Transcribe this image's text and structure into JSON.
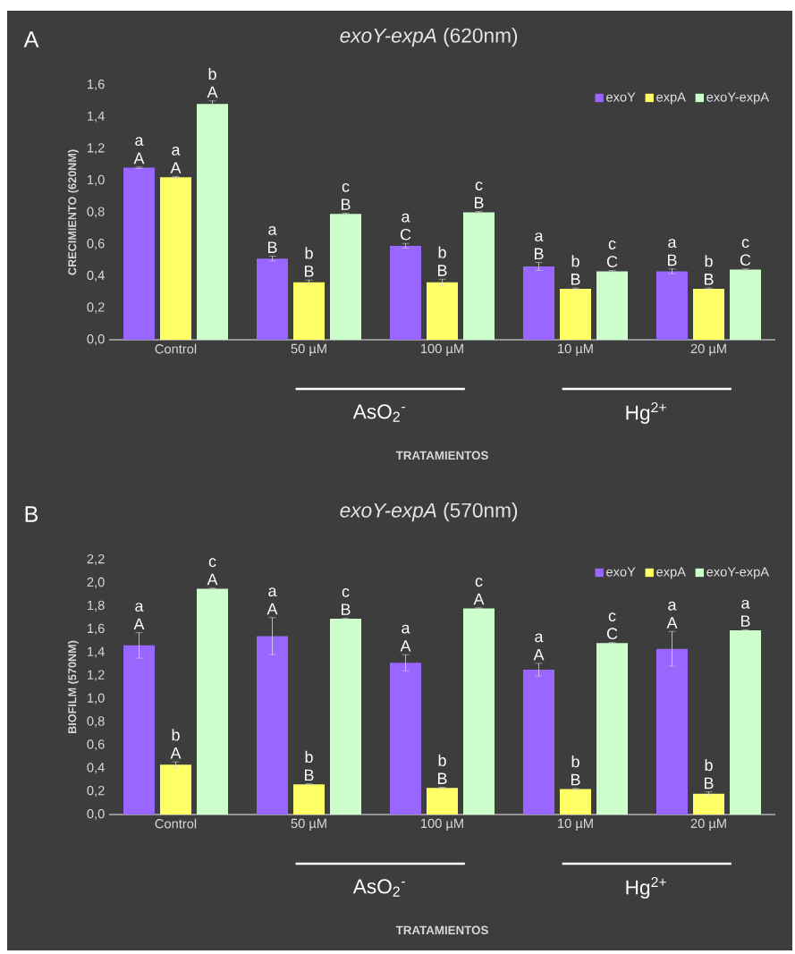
{
  "chart_data": [
    {
      "type": "bar",
      "title": "*exoY-expA* (620nm)",
      "xlabel": "TRATAMIENTOS",
      "ylabel": "CRECIMIENTO (620NM)",
      "categories": [
        "Control",
        "50 µM",
        "100 µM",
        "10 µM",
        "20 µM"
      ],
      "series": [
        {
          "name": "exoY",
          "color": "#9966ff",
          "values": [
            1.08,
            0.51,
            0.59,
            0.46,
            0.43
          ],
          "errors": [
            0.005,
            0.015,
            0.015,
            0.025,
            0.015
          ]
        },
        {
          "name": "expA",
          "color": "#ffff66",
          "values": [
            1.02,
            0.36,
            0.36,
            0.32,
            0.32
          ],
          "errors": [
            0.005,
            0.015,
            0.02,
            0.005,
            0.005
          ]
        },
        {
          "name": "exoY-expA",
          "color": "#ccffcc",
          "values": [
            1.48,
            0.79,
            0.8,
            0.43,
            0.44
          ],
          "errors": [
            0.02,
            0.005,
            0.005,
            0.005,
            0.005
          ]
        }
      ],
      "ylim": [
        0,
        1.6
      ],
      "yticks": [
        {
          "value": 0,
          "label": "0,0"
        },
        {
          "value": 0.2,
          "label": "0,2"
        },
        {
          "value": 0.4,
          "label": "0,4"
        },
        {
          "value": 0.6,
          "label": "0,6"
        },
        {
          "value": 0.8,
          "label": "0,8"
        },
        {
          "value": 1.0,
          "label": "1,0"
        },
        {
          "value": 1.2,
          "label": "1,2"
        },
        {
          "value": 1.4,
          "label": "1,4"
        },
        {
          "value": 1.6,
          "label": "1,6"
        }
      ],
      "legend": "top right",
      "annotations": [
        "A",
        "AsO$_{2}$$^{-}$",
        "Hg$^{2+}$",
        "a",
        "A",
        "a",
        "A",
        "b",
        "A",
        "a",
        "B",
        "b",
        "B",
        "c",
        "B",
        "a",
        "C",
        "b",
        "B",
        "c",
        "B",
        "a",
        "B",
        "b",
        "B",
        "c",
        "C",
        "a",
        "B",
        "b",
        "B",
        "c",
        "C"
      ]
    },
    {
      "type": "bar",
      "title": "*exoY-expA* (570nm)",
      "xlabel": "TRATAMIENTOS",
      "ylabel": "BIOFILM (570NM)",
      "categories": [
        "Control",
        "50 µM",
        "100 µM",
        "10 µM",
        "20 µM"
      ],
      "series": [
        {
          "name": "exoY",
          "color": "#9966ff",
          "values": [
            1.46,
            1.54,
            1.31,
            1.25,
            1.43
          ],
          "errors": [
            0.11,
            0.16,
            0.07,
            0.055,
            0.15
          ]
        },
        {
          "name": "expA",
          "color": "#ffff66",
          "values": [
            0.43,
            0.26,
            0.23,
            0.22,
            0.18
          ],
          "errors": [
            0.025,
            0.005,
            0.005,
            0.005,
            0.015
          ]
        },
        {
          "name": "exoY-expA",
          "color": "#ccffcc",
          "values": [
            1.95,
            1.69,
            1.78,
            1.48,
            1.59
          ],
          "errors": [
            0.005,
            0.005,
            0.005,
            0.005,
            0.005
          ]
        }
      ],
      "ylim": [
        0,
        2.2
      ],
      "yticks": [
        {
          "value": 0,
          "label": "0,0"
        },
        {
          "value": 0.2,
          "label": "0,2"
        },
        {
          "value": 0.4,
          "label": "0,4"
        },
        {
          "value": 0.6,
          "label": "0,6"
        },
        {
          "value": 0.8,
          "label": "0,8"
        },
        {
          "value": 1.0,
          "label": "1,0"
        },
        {
          "value": 1.2,
          "label": "1,2"
        },
        {
          "value": 1.4,
          "label": "1,4"
        },
        {
          "value": 1.6,
          "label": "1,6"
        },
        {
          "value": 1.8,
          "label": "1,8"
        },
        {
          "value": 2.0,
          "label": "2,0"
        },
        {
          "value": 2.2,
          "label": "2,2"
        }
      ],
      "legend": "top right",
      "annotations": [
        "B",
        "AsO$_{2}$$^{-}$",
        "Hg$^{2+}$",
        "a",
        "A",
        "b",
        "A",
        "c",
        "A",
        "a",
        "A",
        "b",
        "B",
        "c",
        "B",
        "a",
        "A",
        "b",
        "B",
        "c",
        "A",
        "a",
        "A",
        "b",
        "B",
        "c",
        "C",
        "a",
        "A",
        "b",
        "B",
        "a",
        "B"
      ]
    }
  ]
}
